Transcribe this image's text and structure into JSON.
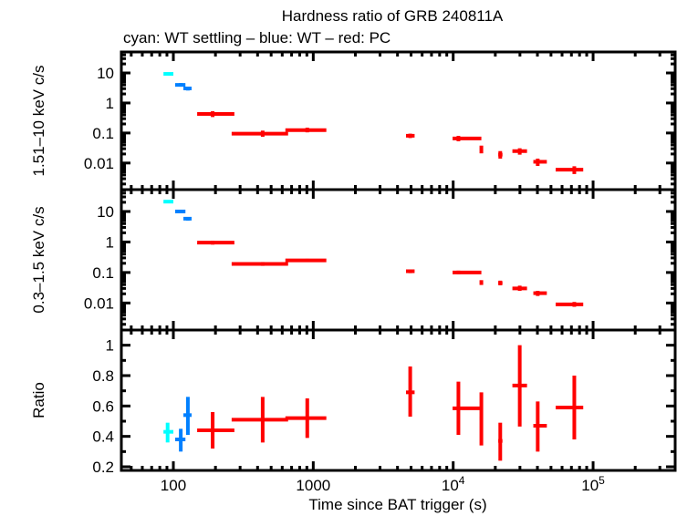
{
  "chart_data": {
    "type": "scatter",
    "title": "Hardness ratio of GRB 240811A",
    "subtitle": "cyan: WT settling – blue: WT – red: PC",
    "xlabel": "Time since BAT trigger (s)",
    "xscale": "log",
    "xlim": [
      42.5,
      386000
    ],
    "x_ticks": [
      {
        "value": 100,
        "label": "100",
        "exp": ""
      },
      {
        "value": 1000,
        "label": "1000",
        "exp": ""
      },
      {
        "value": 10000,
        "label": "10",
        "exp": "4"
      },
      {
        "value": 100000,
        "label": "10",
        "exp": "5"
      }
    ],
    "colors": {
      "wt_settling": "#00FFFF",
      "wt": "#0080FF",
      "pc": "#FF0000"
    },
    "panels": [
      {
        "id": "hard",
        "ylabel": "1.51–10 keV c/s",
        "yscale": "log",
        "ylim": [
          0.0013,
          50
        ],
        "y_ticks": [
          {
            "value": 10,
            "label": "10"
          },
          {
            "value": 1,
            "label": "1"
          },
          {
            "value": 0.1,
            "label": "0.1"
          },
          {
            "value": 0.01,
            "label": "0.01"
          }
        ],
        "points": [
          {
            "mode": "wt_settling",
            "t": 91,
            "t_lo": 85,
            "t_hi": 100,
            "y": 9.3,
            "y_lo": 8.3,
            "y_hi": 10.3
          },
          {
            "mode": "wt",
            "t": 113,
            "t_lo": 103,
            "t_hi": 122,
            "y": 4.0,
            "y_lo": 3.5,
            "y_hi": 4.6
          },
          {
            "mode": "wt",
            "t": 127,
            "t_lo": 118,
            "t_hi": 135,
            "y": 3.05,
            "y_lo": 2.6,
            "y_hi": 3.5
          },
          {
            "mode": "pc",
            "t": 191,
            "t_lo": 148,
            "t_hi": 273,
            "y": 0.43,
            "y_lo": 0.34,
            "y_hi": 0.53
          },
          {
            "mode": "pc",
            "t": 435,
            "t_lo": 261,
            "t_hi": 661,
            "y": 0.095,
            "y_lo": 0.075,
            "y_hi": 0.12
          },
          {
            "mode": "pc",
            "t": 906,
            "t_lo": 632,
            "t_hi": 1240,
            "y": 0.125,
            "y_lo": 0.105,
            "y_hi": 0.15
          },
          {
            "mode": "pc",
            "t": 4930,
            "t_lo": 4600,
            "t_hi": 5300,
            "y": 0.081,
            "y_lo": 0.068,
            "y_hi": 0.095
          },
          {
            "mode": "pc",
            "t": 10900,
            "t_lo": 9900,
            "t_hi": 15900,
            "y": 0.066,
            "y_lo": 0.053,
            "y_hi": 0.08
          },
          {
            "mode": "pc",
            "t": 15900,
            "t_lo": 15500,
            "t_hi": 16300,
            "y": 0.029,
            "y_lo": 0.021,
            "y_hi": 0.038
          },
          {
            "mode": "pc",
            "t": 21700,
            "t_lo": 21000,
            "t_hi": 22500,
            "y": 0.019,
            "y_lo": 0.014,
            "y_hi": 0.025
          },
          {
            "mode": "pc",
            "t": 29900,
            "t_lo": 26500,
            "t_hi": 33700,
            "y": 0.025,
            "y_lo": 0.019,
            "y_hi": 0.031
          },
          {
            "mode": "pc",
            "t": 40200,
            "t_lo": 37400,
            "t_hi": 46700,
            "y": 0.011,
            "y_lo": 0.008,
            "y_hi": 0.014
          },
          {
            "mode": "pc",
            "t": 73400,
            "t_lo": 54000,
            "t_hi": 85000,
            "y": 0.006,
            "y_lo": 0.0043,
            "y_hi": 0.0078
          }
        ]
      },
      {
        "id": "soft",
        "ylabel": "0.3–1.5 keV c/s",
        "yscale": "log",
        "ylim": [
          0.0013,
          52
        ],
        "y_ticks": [
          {
            "value": 10,
            "label": "10"
          },
          {
            "value": 1,
            "label": "1"
          },
          {
            "value": 0.1,
            "label": "0.1"
          },
          {
            "value": 0.01,
            "label": "0.01"
          }
        ],
        "points": [
          {
            "mode": "wt_settling",
            "t": 91,
            "t_lo": 85,
            "t_hi": 100,
            "y": 21,
            "y_lo": 19.5,
            "y_hi": 22.5
          },
          {
            "mode": "wt",
            "t": 113,
            "t_lo": 103,
            "t_hi": 122,
            "y": 10,
            "y_lo": 9.2,
            "y_hi": 10.8
          },
          {
            "mode": "wt",
            "t": 127,
            "t_lo": 118,
            "t_hi": 135,
            "y": 5.8,
            "y_lo": 5.0,
            "y_hi": 6.6
          },
          {
            "mode": "pc",
            "t": 191,
            "t_lo": 148,
            "t_hi": 273,
            "y": 0.95,
            "y_lo": 0.82,
            "y_hi": 1.1
          },
          {
            "mode": "pc",
            "t": 435,
            "t_lo": 261,
            "t_hi": 661,
            "y": 0.19,
            "y_lo": 0.165,
            "y_hi": 0.22
          },
          {
            "mode": "pc",
            "t": 906,
            "t_lo": 632,
            "t_hi": 1240,
            "y": 0.25,
            "y_lo": 0.22,
            "y_hi": 0.28
          },
          {
            "mode": "pc",
            "t": 4930,
            "t_lo": 4600,
            "t_hi": 5300,
            "y": 0.11,
            "y_lo": 0.095,
            "y_hi": 0.125
          },
          {
            "mode": "pc",
            "t": 10900,
            "t_lo": 9900,
            "t_hi": 15900,
            "y": 0.1,
            "y_lo": 0.088,
            "y_hi": 0.115
          },
          {
            "mode": "pc",
            "t": 15900,
            "t_lo": 15500,
            "t_hi": 16300,
            "y": 0.047,
            "y_lo": 0.039,
            "y_hi": 0.056
          },
          {
            "mode": "pc",
            "t": 21700,
            "t_lo": 21000,
            "t_hi": 22500,
            "y": 0.045,
            "y_lo": 0.038,
            "y_hi": 0.054
          },
          {
            "mode": "pc",
            "t": 29900,
            "t_lo": 26500,
            "t_hi": 33700,
            "y": 0.03,
            "y_lo": 0.025,
            "y_hi": 0.037
          },
          {
            "mode": "pc",
            "t": 40200,
            "t_lo": 37400,
            "t_hi": 46700,
            "y": 0.021,
            "y_lo": 0.017,
            "y_hi": 0.025
          },
          {
            "mode": "pc",
            "t": 73400,
            "t_lo": 54000,
            "t_hi": 85000,
            "y": 0.009,
            "y_lo": 0.0075,
            "y_hi": 0.0108
          }
        ]
      },
      {
        "id": "ratio",
        "ylabel": "Ratio",
        "yscale": "linear",
        "ylim": [
          0.176,
          1.1
        ],
        "y_ticks": [
          {
            "value": 1,
            "label": "1"
          },
          {
            "value": 0.8,
            "label": "0.8"
          },
          {
            "value": 0.6,
            "label": "0.6"
          },
          {
            "value": 0.4,
            "label": "0.4"
          },
          {
            "value": 0.2,
            "label": "0.2"
          }
        ],
        "y_minor_step": 0.1,
        "points": [
          {
            "mode": "wt_settling",
            "t": 91,
            "t_lo": 85,
            "t_hi": 100,
            "y": 0.43,
            "y_lo": 0.36,
            "y_hi": 0.49
          },
          {
            "mode": "wt",
            "t": 113,
            "t_lo": 103,
            "t_hi": 122,
            "y": 0.38,
            "y_lo": 0.3,
            "y_hi": 0.45
          },
          {
            "mode": "wt",
            "t": 127,
            "t_lo": 118,
            "t_hi": 135,
            "y": 0.54,
            "y_lo": 0.41,
            "y_hi": 0.66
          },
          {
            "mode": "pc",
            "t": 191,
            "t_lo": 148,
            "t_hi": 273,
            "y": 0.44,
            "y_lo": 0.32,
            "y_hi": 0.56
          },
          {
            "mode": "pc",
            "t": 435,
            "t_lo": 261,
            "t_hi": 661,
            "y": 0.51,
            "y_lo": 0.36,
            "y_hi": 0.66
          },
          {
            "mode": "pc",
            "t": 906,
            "t_lo": 632,
            "t_hi": 1240,
            "y": 0.52,
            "y_lo": 0.39,
            "y_hi": 0.65
          },
          {
            "mode": "pc",
            "t": 4930,
            "t_lo": 4600,
            "t_hi": 5300,
            "y": 0.69,
            "y_lo": 0.53,
            "y_hi": 0.86
          },
          {
            "mode": "pc",
            "t": 10900,
            "t_lo": 9900,
            "t_hi": 15900,
            "y": 0.585,
            "y_lo": 0.41,
            "y_hi": 0.76
          },
          {
            "mode": "pc",
            "t": 15900,
            "t_lo": 15500,
            "t_hi": 16300,
            "y": 0.52,
            "y_lo": 0.34,
            "y_hi": 0.69
          },
          {
            "mode": "pc",
            "t": 21700,
            "t_lo": 21000,
            "t_hi": 22500,
            "y": 0.37,
            "y_lo": 0.24,
            "y_hi": 0.49
          },
          {
            "mode": "pc",
            "t": 29900,
            "t_lo": 26500,
            "t_hi": 33700,
            "y": 0.735,
            "y_lo": 0.465,
            "y_hi": 1.0
          },
          {
            "mode": "pc",
            "t": 40200,
            "t_lo": 37400,
            "t_hi": 46700,
            "y": 0.47,
            "y_lo": 0.3,
            "y_hi": 0.63
          },
          {
            "mode": "pc",
            "t": 73400,
            "t_lo": 54000,
            "t_hi": 85000,
            "y": 0.59,
            "y_lo": 0.38,
            "y_hi": 0.8
          }
        ]
      }
    ]
  }
}
